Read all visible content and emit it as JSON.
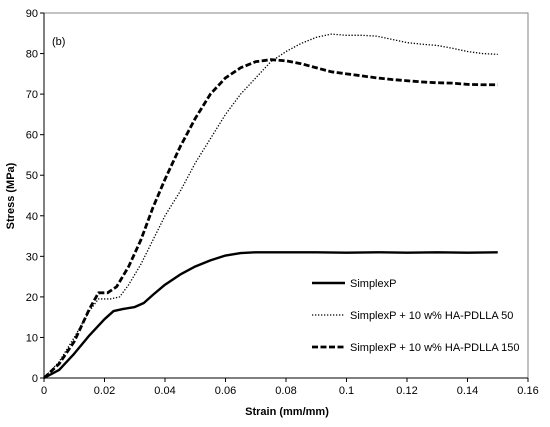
{
  "chart_data": {
    "type": "line",
    "panel_label": "(b)",
    "title": "",
    "xlabel": "Strain (mm/mm)",
    "ylabel": "Stress (MPa)",
    "xlim": [
      0,
      0.16
    ],
    "ylim": [
      0,
      90
    ],
    "x_ticks": [
      0,
      0.02,
      0.04,
      0.06,
      0.08,
      0.1,
      0.12,
      0.14,
      0.16
    ],
    "x_tick_labels": [
      "0",
      "0.02",
      "0.04",
      "0.06",
      "0.08",
      "0.1",
      "0.12",
      "0.14",
      "0.16"
    ],
    "y_ticks": [
      0,
      10,
      20,
      30,
      40,
      50,
      60,
      70,
      80,
      90
    ],
    "y_tick_labels": [
      "0",
      "10",
      "20",
      "30",
      "40",
      "50",
      "60",
      "70",
      "80",
      "90"
    ],
    "grid": false,
    "legend_position": "bottom-right",
    "series": [
      {
        "name": "SimplexP",
        "style": "solid",
        "color": "#000000",
        "points": [
          [
            0,
            0
          ],
          [
            0.005,
            2
          ],
          [
            0.01,
            6
          ],
          [
            0.015,
            10.5
          ],
          [
            0.02,
            14.5
          ],
          [
            0.023,
            16.5
          ],
          [
            0.026,
            17
          ],
          [
            0.03,
            17.5
          ],
          [
            0.033,
            18.5
          ],
          [
            0.036,
            20.5
          ],
          [
            0.04,
            23
          ],
          [
            0.045,
            25.5
          ],
          [
            0.05,
            27.5
          ],
          [
            0.055,
            29
          ],
          [
            0.06,
            30.2
          ],
          [
            0.065,
            30.8
          ],
          [
            0.07,
            31
          ],
          [
            0.08,
            31
          ],
          [
            0.09,
            31
          ],
          [
            0.1,
            30.9
          ],
          [
            0.11,
            31
          ],
          [
            0.12,
            30.9
          ],
          [
            0.13,
            31
          ],
          [
            0.14,
            30.9
          ],
          [
            0.15,
            31
          ]
        ]
      },
      {
        "name": "SimplexP + 10 w% HA-PDLLA 50",
        "style": "dotted",
        "color": "#000000",
        "points": [
          [
            0,
            0
          ],
          [
            0.005,
            4
          ],
          [
            0.01,
            10
          ],
          [
            0.015,
            16.5
          ],
          [
            0.018,
            19.5
          ],
          [
            0.022,
            19.5
          ],
          [
            0.025,
            20
          ],
          [
            0.028,
            23
          ],
          [
            0.032,
            28
          ],
          [
            0.036,
            34
          ],
          [
            0.04,
            40
          ],
          [
            0.045,
            46
          ],
          [
            0.05,
            53
          ],
          [
            0.055,
            59
          ],
          [
            0.06,
            65
          ],
          [
            0.065,
            70
          ],
          [
            0.07,
            74
          ],
          [
            0.075,
            78
          ],
          [
            0.08,
            80.5
          ],
          [
            0.085,
            82.5
          ],
          [
            0.09,
            84
          ],
          [
            0.095,
            84.8
          ],
          [
            0.1,
            84.5
          ],
          [
            0.105,
            84.5
          ],
          [
            0.11,
            84.3
          ],
          [
            0.115,
            83.5
          ],
          [
            0.12,
            82.7
          ],
          [
            0.125,
            82.3
          ],
          [
            0.13,
            82
          ],
          [
            0.135,
            81.3
          ],
          [
            0.14,
            80.5
          ],
          [
            0.145,
            80
          ],
          [
            0.15,
            79.8
          ]
        ]
      },
      {
        "name": "SimplexP + 10 w% HA-PDLLA 150",
        "style": "dashed",
        "color": "#000000",
        "points": [
          [
            0,
            0
          ],
          [
            0.005,
            3.5
          ],
          [
            0.01,
            9
          ],
          [
            0.015,
            17
          ],
          [
            0.018,
            21
          ],
          [
            0.021,
            21
          ],
          [
            0.024,
            22.5
          ],
          [
            0.028,
            27.5
          ],
          [
            0.032,
            34
          ],
          [
            0.036,
            42
          ],
          [
            0.04,
            49
          ],
          [
            0.045,
            57
          ],
          [
            0.05,
            64
          ],
          [
            0.055,
            70
          ],
          [
            0.06,
            74
          ],
          [
            0.065,
            76.5
          ],
          [
            0.07,
            78
          ],
          [
            0.075,
            78.5
          ],
          [
            0.08,
            78.2
          ],
          [
            0.085,
            77.5
          ],
          [
            0.09,
            76.5
          ],
          [
            0.095,
            75.5
          ],
          [
            0.1,
            75
          ],
          [
            0.105,
            74.5
          ],
          [
            0.11,
            74
          ],
          [
            0.115,
            73.6
          ],
          [
            0.12,
            73.3
          ],
          [
            0.125,
            73
          ],
          [
            0.13,
            72.8
          ],
          [
            0.135,
            72.7
          ],
          [
            0.14,
            72.4
          ],
          [
            0.145,
            72.3
          ],
          [
            0.15,
            72.3
          ]
        ]
      }
    ]
  }
}
